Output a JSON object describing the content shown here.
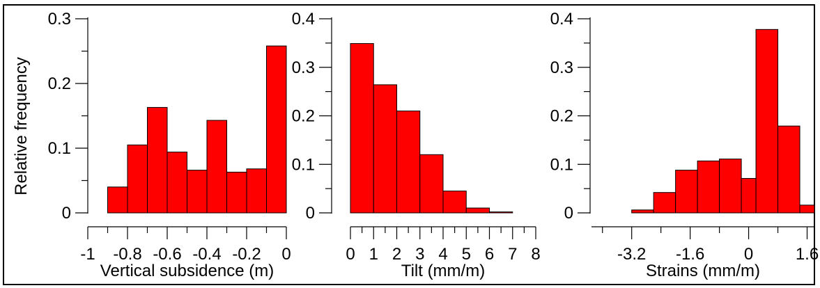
{
  "chart_data": [
    {
      "type": "bar",
      "xlabel": "Vertical subsidence (m)",
      "ylabel": "Relative frequency",
      "xlim": [
        -1.0,
        0.0
      ],
      "ylim": [
        0,
        0.3
      ],
      "xticks": [
        -1,
        -0.8,
        -0.6,
        -0.4,
        -0.2,
        0
      ],
      "xticks_labels": [
        "-1",
        "-0.8",
        "-0.6",
        "-0.4",
        "-0.2",
        "0"
      ],
      "minor_xticks": [
        -0.9,
        -0.7,
        -0.5,
        -0.3,
        -0.1
      ],
      "yticks": [
        0,
        0.1,
        0.2,
        0.3
      ],
      "yticks_labels": [
        "0",
        "0.1",
        "0.2",
        "0.3"
      ],
      "bins": [
        [
          -0.9,
          -0.8
        ],
        [
          -0.8,
          -0.7
        ],
        [
          -0.7,
          -0.6
        ],
        [
          -0.6,
          -0.5
        ],
        [
          -0.5,
          -0.4
        ],
        [
          -0.4,
          -0.3
        ],
        [
          -0.3,
          -0.2
        ],
        [
          -0.2,
          -0.1
        ],
        [
          -0.1,
          0.0
        ]
      ],
      "values": [
        0.04,
        0.105,
        0.163,
        0.094,
        0.066,
        0.143,
        0.063,
        0.068,
        0.258
      ],
      "color": "#ff0000"
    },
    {
      "type": "bar",
      "xlabel": "Tilt (mm/m)",
      "xlim": [
        0,
        8
      ],
      "ylim": [
        0,
        0.4
      ],
      "xticks": [
        0,
        1,
        2,
        3,
        4,
        5,
        6,
        7,
        8
      ],
      "xticks_labels": [
        "0",
        "1",
        "2",
        "3",
        "4",
        "5",
        "6",
        "7",
        "8"
      ],
      "minor_xticks": [
        0.5,
        1.5,
        2.5,
        3.5,
        4.5,
        5.5,
        6.5,
        7.5
      ],
      "yticks": [
        0,
        0.1,
        0.2,
        0.3,
        0.4
      ],
      "yticks_labels": [
        "0",
        "0.1",
        "0.2",
        "0.3",
        "0.4"
      ],
      "bins": [
        [
          0,
          1
        ],
        [
          1,
          2
        ],
        [
          2,
          3
        ],
        [
          3,
          4
        ],
        [
          4,
          5
        ],
        [
          5,
          6
        ],
        [
          6,
          7
        ]
      ],
      "values": [
        0.349,
        0.264,
        0.21,
        0.12,
        0.045,
        0.01,
        0.002
      ],
      "color": "#ff0000"
    },
    {
      "type": "bar",
      "xlabel": "Strains (mm/m)",
      "xlim": [
        -4.3,
        1.8
      ],
      "ylim": [
        0,
        0.4
      ],
      "xticks": [
        -3.2,
        -1.6,
        0,
        1.6
      ],
      "xticks_labels": [
        "-3.2",
        "-1.6",
        "0",
        "1.6"
      ],
      "minor_xticks": [
        -4.0,
        -2.4,
        -0.8,
        0.8
      ],
      "yticks": [
        0,
        0.1,
        0.2,
        0.3,
        0.4
      ],
      "yticks_labels": [
        "0",
        "0.1",
        "0.2",
        "0.3",
        "0.4"
      ],
      "bins": [
        [
          -3.2,
          -2.6
        ],
        [
          -2.6,
          -2.0
        ],
        [
          -2.0,
          -1.4
        ],
        [
          -1.4,
          -0.8
        ],
        [
          -0.8,
          -0.2
        ],
        [
          -0.2,
          0.2
        ],
        [
          0.2,
          0.8
        ],
        [
          0.8,
          1.4
        ],
        [
          1.4,
          1.8
        ]
      ],
      "values": [
        0.006,
        0.042,
        0.088,
        0.107,
        0.111,
        0.071,
        0.378,
        0.179,
        0.016
      ],
      "color": "#ff0000"
    }
  ]
}
